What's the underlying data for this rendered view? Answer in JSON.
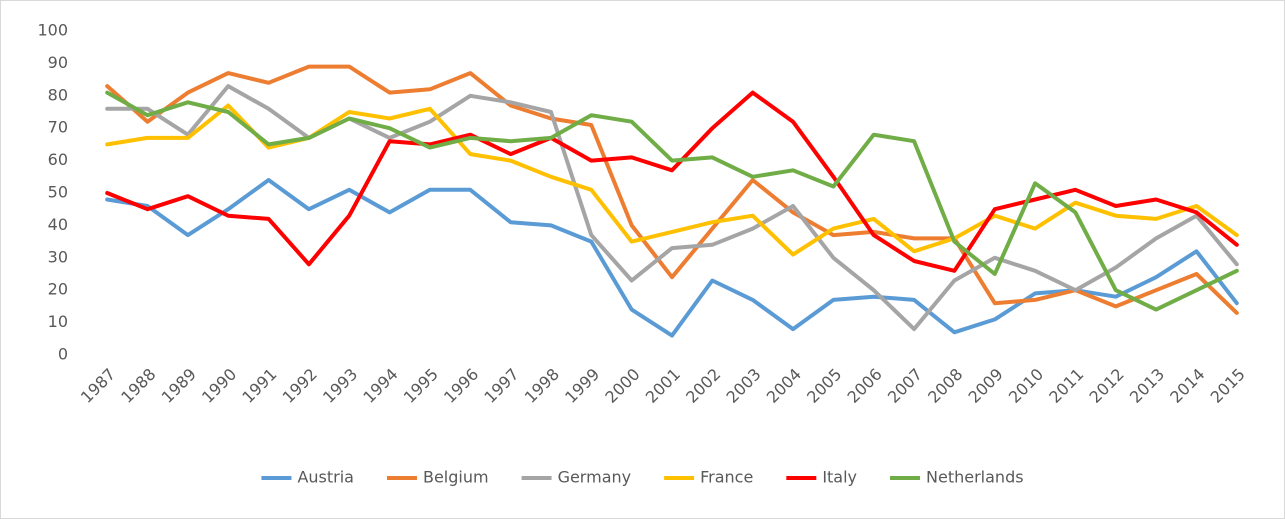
{
  "chart_data": {
    "type": "line",
    "categories": [
      "1987",
      "1988",
      "1989",
      "1990",
      "1991",
      "1992",
      "1993",
      "1994",
      "1995",
      "1996",
      "1997",
      "1998",
      "1999",
      "2000",
      "2001",
      "2002",
      "2003",
      "2004",
      "2005",
      "2006",
      "2007",
      "2008",
      "2009",
      "2010",
      "2011",
      "2012",
      "2013",
      "2014",
      "2015"
    ],
    "series": [
      {
        "name": "Austria",
        "color": "#5b9bd5",
        "values": [
          48,
          46,
          37,
          45,
          54,
          45,
          51,
          44,
          51,
          51,
          41,
          40,
          35,
          14,
          6,
          23,
          17,
          8,
          17,
          18,
          17,
          7,
          11,
          19,
          20,
          18,
          24,
          32,
          16
        ]
      },
      {
        "name": "Belgium",
        "color": "#ed7d31",
        "values": [
          83,
          72,
          81,
          87,
          84,
          89,
          89,
          81,
          82,
          87,
          77,
          73,
          71,
          40,
          24,
          39,
          54,
          44,
          37,
          38,
          36,
          36,
          16,
          17,
          20,
          15,
          20,
          25,
          13
        ]
      },
      {
        "name": "Germany",
        "color": "#a5a5a5",
        "values": [
          76,
          76,
          68,
          83,
          76,
          67,
          73,
          67,
          72,
          80,
          78,
          75,
          37,
          23,
          33,
          34,
          39,
          46,
          30,
          20,
          8,
          23,
          30,
          26,
          20,
          27,
          36,
          43,
          28
        ]
      },
      {
        "name": "France",
        "color": "#ffc000",
        "values": [
          65,
          67,
          67,
          77,
          64,
          67,
          75,
          73,
          76,
          62,
          60,
          55,
          51,
          35,
          38,
          41,
          43,
          31,
          39,
          42,
          32,
          36,
          43,
          39,
          47,
          43,
          42,
          46,
          37
        ]
      },
      {
        "name": "Italy",
        "color": "#ff0000",
        "values": [
          50,
          45,
          49,
          43,
          42,
          28,
          43,
          66,
          65,
          68,
          62,
          67,
          60,
          61,
          57,
          70,
          81,
          72,
          55,
          37,
          29,
          26,
          45,
          48,
          51,
          46,
          48,
          44,
          34
        ]
      },
      {
        "name": "Netherlands",
        "color": "#70ad47",
        "values": [
          81,
          74,
          78,
          75,
          65,
          67,
          73,
          70,
          64,
          67,
          66,
          67,
          74,
          72,
          60,
          61,
          55,
          57,
          52,
          68,
          66,
          35,
          25,
          53,
          44,
          20,
          14,
          20,
          26
        ]
      }
    ],
    "ylim": [
      0,
      100
    ],
    "yticks": [
      0,
      10,
      20,
      30,
      40,
      50,
      60,
      70,
      80,
      90,
      100
    ],
    "grid": false,
    "legend": "bottom"
  }
}
